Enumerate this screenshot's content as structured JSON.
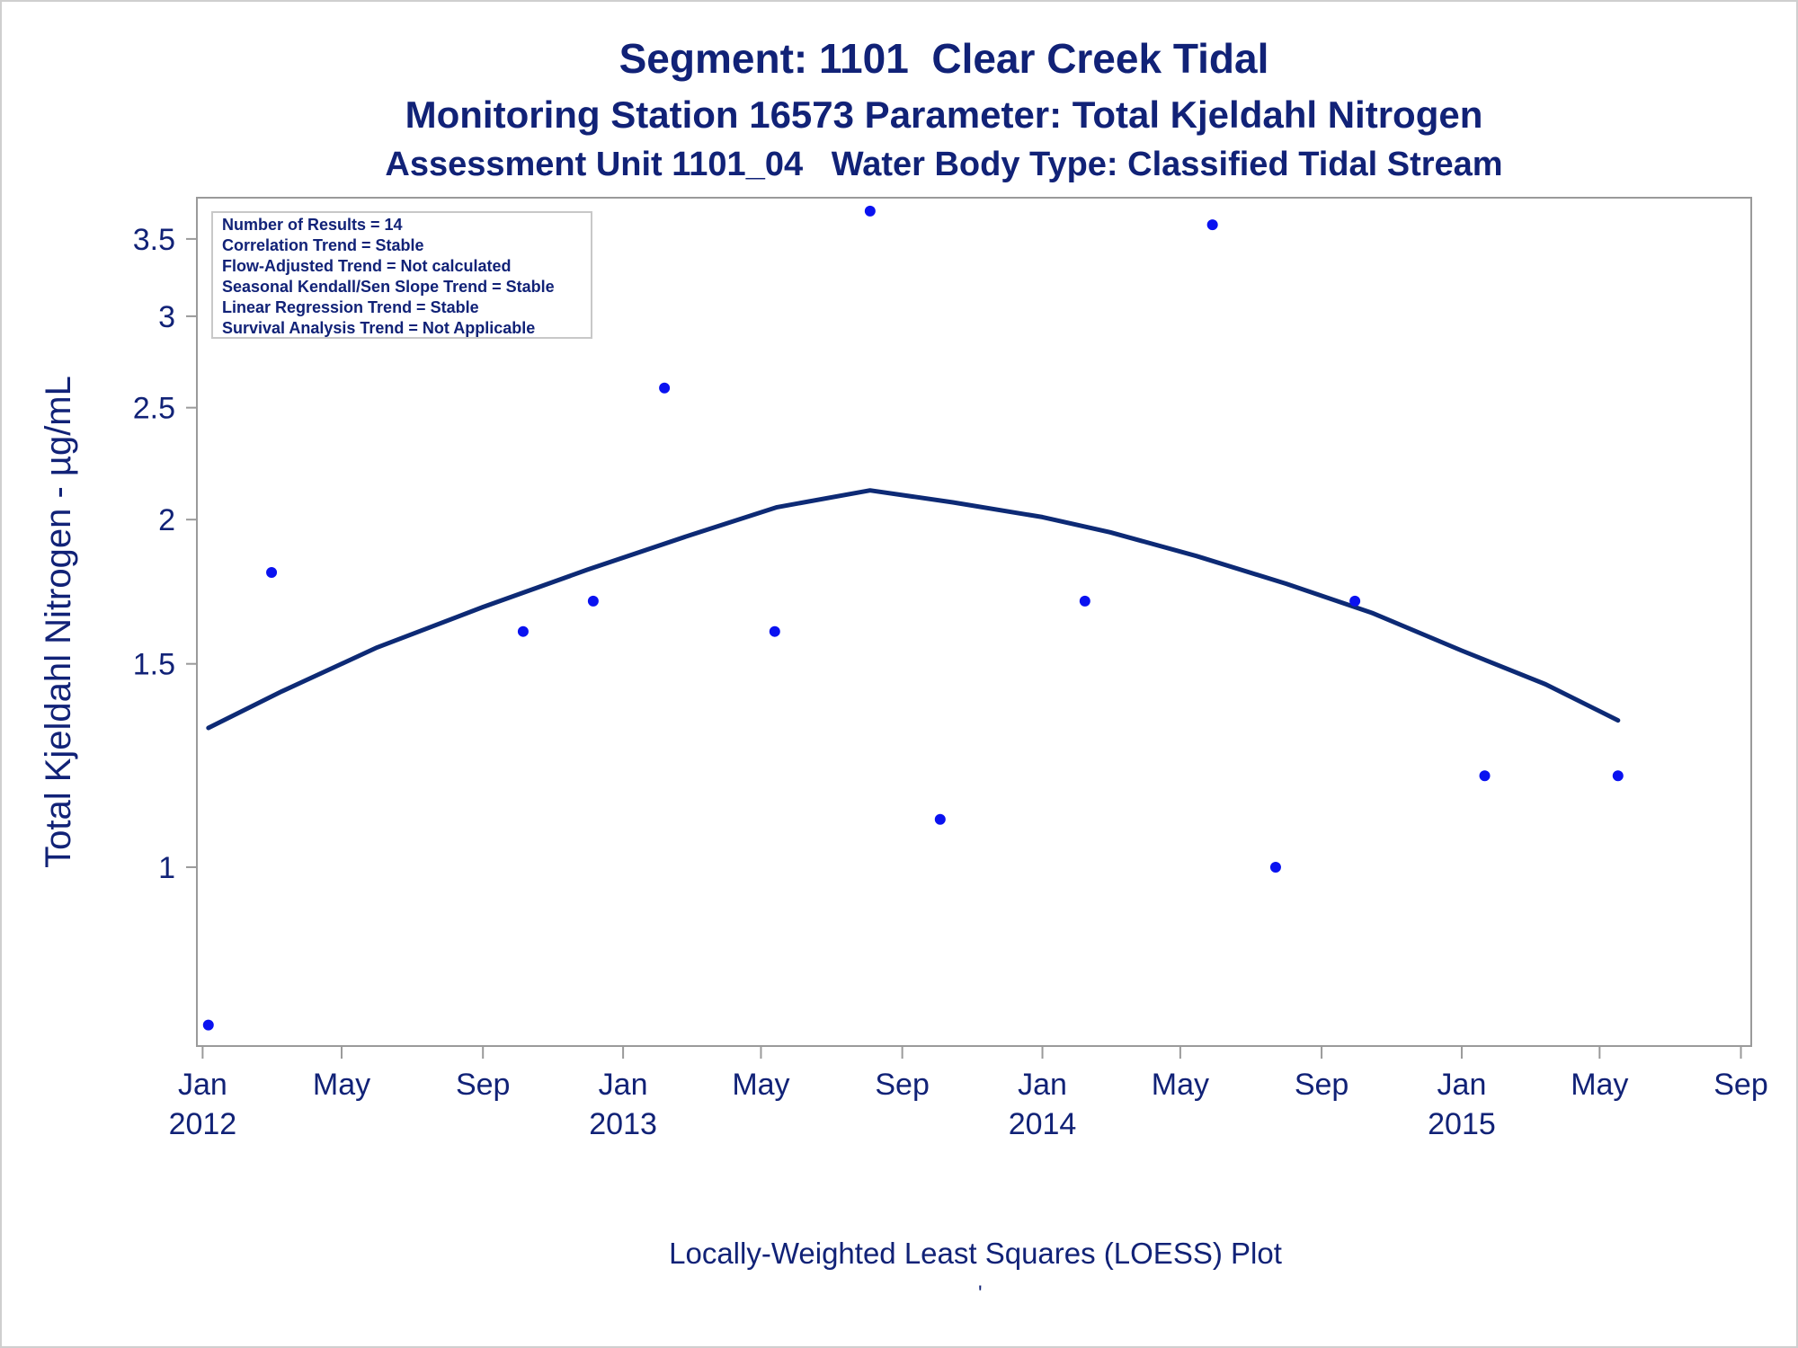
{
  "titles": {
    "line1": "Segment: 1101  Clear Creek Tidal",
    "line2": "Monitoring Station 16573 Parameter: Total Kjeldahl Nitrogen",
    "line3": "Assessment Unit 1101_04   Water Body Type: Classified Tidal Stream"
  },
  "footnote": "Locally-Weighted Least Squares (LOESS) Plot",
  "tick_mark": "'",
  "colors": {
    "text": "#112277",
    "points": "#0a12f0",
    "loess": "#0d2a75",
    "axis": "#9a9a9a"
  },
  "chart_data": {
    "type": "scatter",
    "ylabel": "Total Kjeldahl Nitrogen -  µg/mL",
    "xlabel": "",
    "y_scale": "log",
    "ylim": [
      0.7,
      3.8
    ],
    "y_ticks": [
      {
        "value": 1,
        "label": "1"
      },
      {
        "value": 1.5,
        "label": "1.5"
      },
      {
        "value": 2,
        "label": "2"
      },
      {
        "value": 2.5,
        "label": "2.5"
      },
      {
        "value": 3,
        "label": "3"
      },
      {
        "value": 3.5,
        "label": "3.5"
      }
    ],
    "xlim": [
      "2011-12-27",
      "2015-09-10"
    ],
    "x_ticks": [
      {
        "date": "2012-01-01",
        "label": "Jan",
        "year": "2012"
      },
      {
        "date": "2012-05-01",
        "label": "May",
        "year": ""
      },
      {
        "date": "2012-09-01",
        "label": "Sep",
        "year": ""
      },
      {
        "date": "2013-01-01",
        "label": "Jan",
        "year": "2013"
      },
      {
        "date": "2013-05-01",
        "label": "May",
        "year": ""
      },
      {
        "date": "2013-09-01",
        "label": "Sep",
        "year": ""
      },
      {
        "date": "2014-01-01",
        "label": "Jan",
        "year": "2014"
      },
      {
        "date": "2014-05-01",
        "label": "May",
        "year": ""
      },
      {
        "date": "2014-09-01",
        "label": "Sep",
        "year": ""
      },
      {
        "date": "2015-01-01",
        "label": "Jan",
        "year": "2015"
      },
      {
        "date": "2015-05-01",
        "label": "May",
        "year": ""
      },
      {
        "date": "2015-09-01",
        "label": "Sep",
        "year": ""
      }
    ],
    "points": [
      {
        "date": "2012-01-06",
        "value": 0.73
      },
      {
        "date": "2012-03-01",
        "value": 1.8
      },
      {
        "date": "2012-10-06",
        "value": 1.6
      },
      {
        "date": "2012-12-06",
        "value": 1.7
      },
      {
        "date": "2013-02-06",
        "value": 2.6
      },
      {
        "date": "2013-05-13",
        "value": 1.6
      },
      {
        "date": "2013-08-04",
        "value": 3.7
      },
      {
        "date": "2013-10-04",
        "value": 1.1
      },
      {
        "date": "2014-02-07",
        "value": 1.7
      },
      {
        "date": "2014-05-29",
        "value": 3.6
      },
      {
        "date": "2014-07-23",
        "value": 1.0
      },
      {
        "date": "2014-09-30",
        "value": 1.7
      },
      {
        "date": "2015-01-21",
        "value": 1.2
      },
      {
        "date": "2015-05-17",
        "value": 1.2
      }
    ],
    "loess": [
      {
        "date": "2012-01-06",
        "value": 1.32
      },
      {
        "date": "2012-03-10",
        "value": 1.42
      },
      {
        "date": "2012-06-01",
        "value": 1.55
      },
      {
        "date": "2012-09-01",
        "value": 1.68
      },
      {
        "date": "2012-12-01",
        "value": 1.81
      },
      {
        "date": "2013-03-01",
        "value": 1.94
      },
      {
        "date": "2013-05-15",
        "value": 2.05
      },
      {
        "date": "2013-08-04",
        "value": 2.12
      },
      {
        "date": "2013-10-15",
        "value": 2.07
      },
      {
        "date": "2014-01-01",
        "value": 2.01
      },
      {
        "date": "2014-03-01",
        "value": 1.95
      },
      {
        "date": "2014-05-15",
        "value": 1.86
      },
      {
        "date": "2014-08-01",
        "value": 1.76
      },
      {
        "date": "2014-10-15",
        "value": 1.66
      },
      {
        "date": "2015-01-01",
        "value": 1.54
      },
      {
        "date": "2015-03-15",
        "value": 1.44
      },
      {
        "date": "2015-05-17",
        "value": 1.34
      }
    ],
    "inset_lines": [
      "Number of Results = 14",
      "Correlation Trend = Stable",
      "Flow-Adjusted Trend = Not calculated",
      "Seasonal Kendall/Sen Slope Trend = Stable",
      "Linear Regression Trend = Stable",
      "Survival Analysis Trend = Not Applicable"
    ]
  }
}
